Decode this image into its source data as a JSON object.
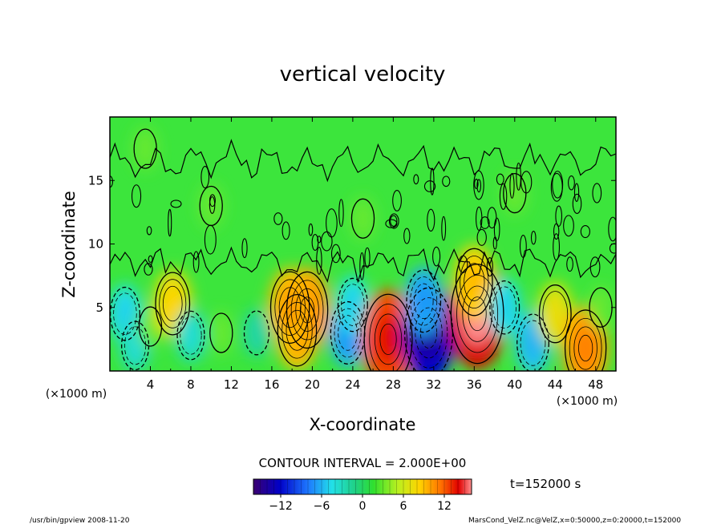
{
  "chart_data": {
    "type": "heatmap",
    "title": "vertical velocity",
    "xlabel": "X-coordinate",
    "ylabel": "Z-coordinate",
    "x_unit_left": "(×1000 m)",
    "x_unit_right": "(×1000 m)",
    "xlim": [
      0,
      50
    ],
    "ylim": [
      0,
      20
    ],
    "x_ticks": [
      4,
      8,
      12,
      16,
      20,
      24,
      28,
      32,
      36,
      40,
      44,
      48
    ],
    "y_ticks": [
      5,
      10,
      15
    ],
    "contour_interval_text": "CONTOUR INTERVAL = 2.000E+00",
    "time_label": "t=152000 s",
    "colorbar": {
      "range": [
        -16,
        16
      ],
      "tick_values": [
        -12,
        -6,
        0,
        6,
        12
      ],
      "tick_labels": [
        "−12",
        "−6",
        "0",
        "6",
        "12"
      ]
    },
    "cells": [
      {
        "x": 1.5,
        "z": 4.5,
        "w": -4
      },
      {
        "x": 2.5,
        "z": 2.0,
        "w": -3
      },
      {
        "x": 4.0,
        "z": 3.5,
        "w": 1
      },
      {
        "x": 6.2,
        "z": 5.3,
        "w": 6
      },
      {
        "x": 8.0,
        "z": 2.8,
        "w": -3
      },
      {
        "x": 11.0,
        "z": 3.0,
        "w": 1
      },
      {
        "x": 14.5,
        "z": 3.0,
        "w": -2
      },
      {
        "x": 18.5,
        "z": 3.2,
        "w": 8
      },
      {
        "x": 19.5,
        "z": 4.8,
        "w": 9
      },
      {
        "x": 17.8,
        "z": 5.0,
        "w": 8
      },
      {
        "x": 23.5,
        "z": 3.0,
        "w": -6
      },
      {
        "x": 24.0,
        "z": 5.2,
        "w": -4
      },
      {
        "x": 27.5,
        "z": 2.5,
        "w": 12
      },
      {
        "x": 31.5,
        "z": 3.0,
        "w": -12
      },
      {
        "x": 31.0,
        "z": 5.5,
        "w": -6
      },
      {
        "x": 36.3,
        "z": 4.5,
        "w": 14
      },
      {
        "x": 36.0,
        "z": 7.0,
        "w": 7
      },
      {
        "x": 39.0,
        "z": 5.0,
        "w": -4
      },
      {
        "x": 41.8,
        "z": 2.2,
        "w": -5
      },
      {
        "x": 44.0,
        "z": 4.5,
        "w": 5
      },
      {
        "x": 47.0,
        "z": 1.8,
        "w": 9
      },
      {
        "x": 48.5,
        "z": 5.0,
        "w": 1
      },
      {
        "x": 25.0,
        "z": 12.0,
        "w": 1
      },
      {
        "x": 10.0,
        "z": 13.0,
        "w": 1
      },
      {
        "x": 40.0,
        "z": 14.0,
        "w": 1
      },
      {
        "x": 3.5,
        "z": 17.5,
        "w": 1
      }
    ]
  },
  "footer": {
    "left": "/usr/bin/gpview   2008-11-20",
    "right": "MarsCond_VelZ.nc@VelZ,x=0:50000,z=0:20000,t=152000"
  }
}
